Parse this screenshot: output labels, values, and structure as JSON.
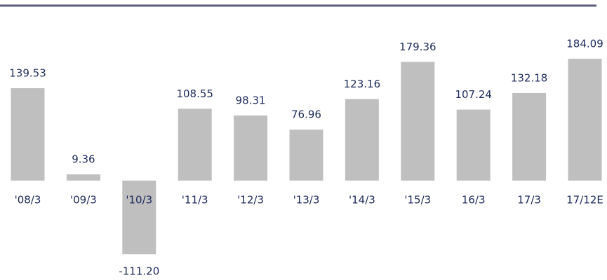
{
  "chart_data": {
    "type": "bar",
    "categories": [
      "'08/3",
      "'09/3",
      "'10/3",
      "'11/3",
      "'12/3",
      "'13/3",
      "'14/3",
      "'15/3",
      "16/3",
      "17/3",
      "17/12E"
    ],
    "values": [
      139.53,
      9.36,
      -111.2,
      108.55,
      98.31,
      76.96,
      123.16,
      179.36,
      107.24,
      132.18,
      184.09
    ],
    "value_labels": [
      "139.53",
      "9.36",
      "-111.20",
      "108.55",
      "98.31",
      "76.96",
      "123.16",
      "179.36",
      "107.24",
      "132.18",
      "184.09"
    ],
    "color": "#bfbfbf"
  }
}
